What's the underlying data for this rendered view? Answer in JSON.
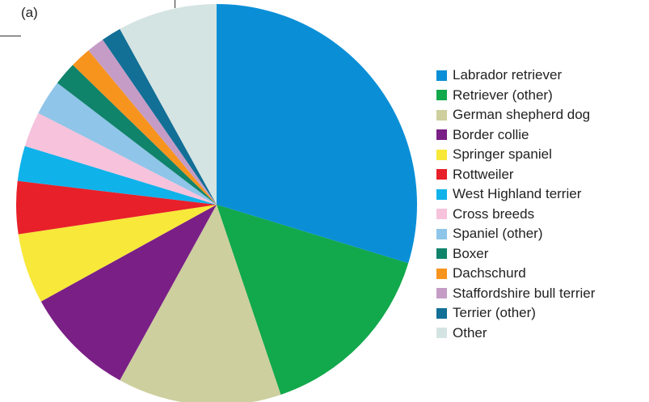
{
  "panel_label": "(a)",
  "chart_data": {
    "type": "pie",
    "title": "",
    "legend_position": "right",
    "start": "top, clockwise",
    "slices": [
      {
        "label": "Labrador retriever",
        "value": 31.5,
        "color": "#0a8fd7"
      },
      {
        "label": "Retriever (other)",
        "value": 16.0,
        "color": "#12a84c"
      },
      {
        "label": "German shepherd dog",
        "value": 14.0,
        "color": "#cdcf9e"
      },
      {
        "label": "Border collie",
        "value": 9.5,
        "color": "#7a1f86"
      },
      {
        "label": "Springer spaniel",
        "value": 6.0,
        "color": "#f7e83a"
      },
      {
        "label": "Rottweiler",
        "value": 4.5,
        "color": "#e8202a"
      },
      {
        "label": "West Highland terrier",
        "value": 3.0,
        "color": "#10b2ea"
      },
      {
        "label": "Cross breeds",
        "value": 3.0,
        "color": "#f6c2dc"
      },
      {
        "label": "Spaniel (other)",
        "value": 3.0,
        "color": "#8ec5e8"
      },
      {
        "label": "Boxer",
        "value": 2.0,
        "color": "#10836b"
      },
      {
        "label": "Dachschurd",
        "value": 1.8,
        "color": "#f7941d"
      },
      {
        "label": "Staffordshire bull terrier",
        "value": 1.5,
        "color": "#c59cc6"
      },
      {
        "label": "Terrier (other)",
        "value": 1.7,
        "color": "#126f96"
      },
      {
        "label": "Other",
        "value": 8.5,
        "color": "#d4e4e2"
      }
    ]
  }
}
